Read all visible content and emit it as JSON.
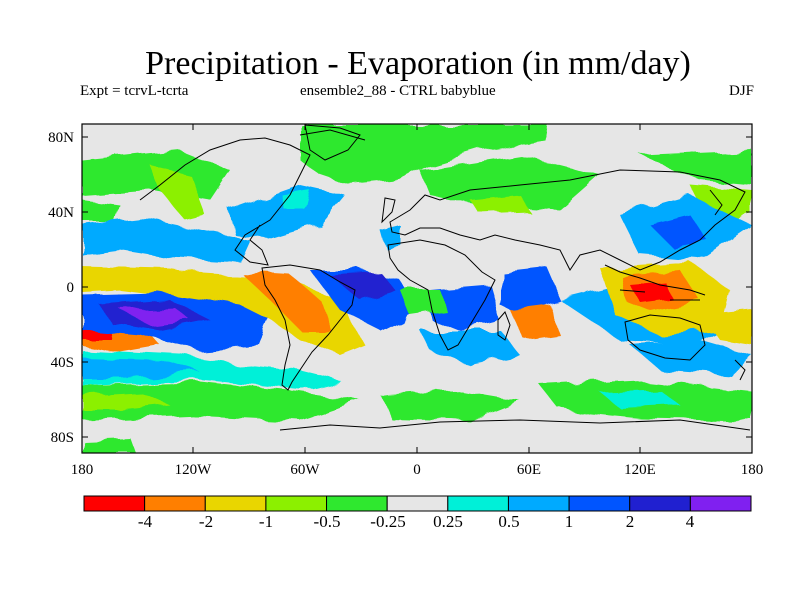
{
  "title": "Precipitation - Evaporation (in mm/day)",
  "subtitle_left": "Expt = tcrvL-tcrta",
  "subtitle_center": "ensemble2_88 - CTRL babyblue",
  "subtitle_right": "DJF",
  "lat_labels": [
    "80N",
    "40N",
    "0",
    "40S",
    "80S"
  ],
  "lon_labels": [
    "180",
    "120W",
    "60W",
    "0",
    "60E",
    "120E",
    "180"
  ],
  "colorbar": {
    "labels": [
      "-4",
      "-2",
      "-1",
      "-0.5",
      "-0.25",
      "0.25",
      "0.5",
      "1",
      "2",
      "4"
    ],
    "colors": [
      "#ff0000",
      "#ff7f00",
      "#e9d600",
      "#8cf000",
      "#2fe82f",
      "#e6e6e6",
      "#00f0d8",
      "#00aaff",
      "#0055ff",
      "#2020d0",
      "#8020f0"
    ]
  },
  "colors": {
    "ocean_background": "#e6e6e6",
    "coastline": "#000000"
  }
}
